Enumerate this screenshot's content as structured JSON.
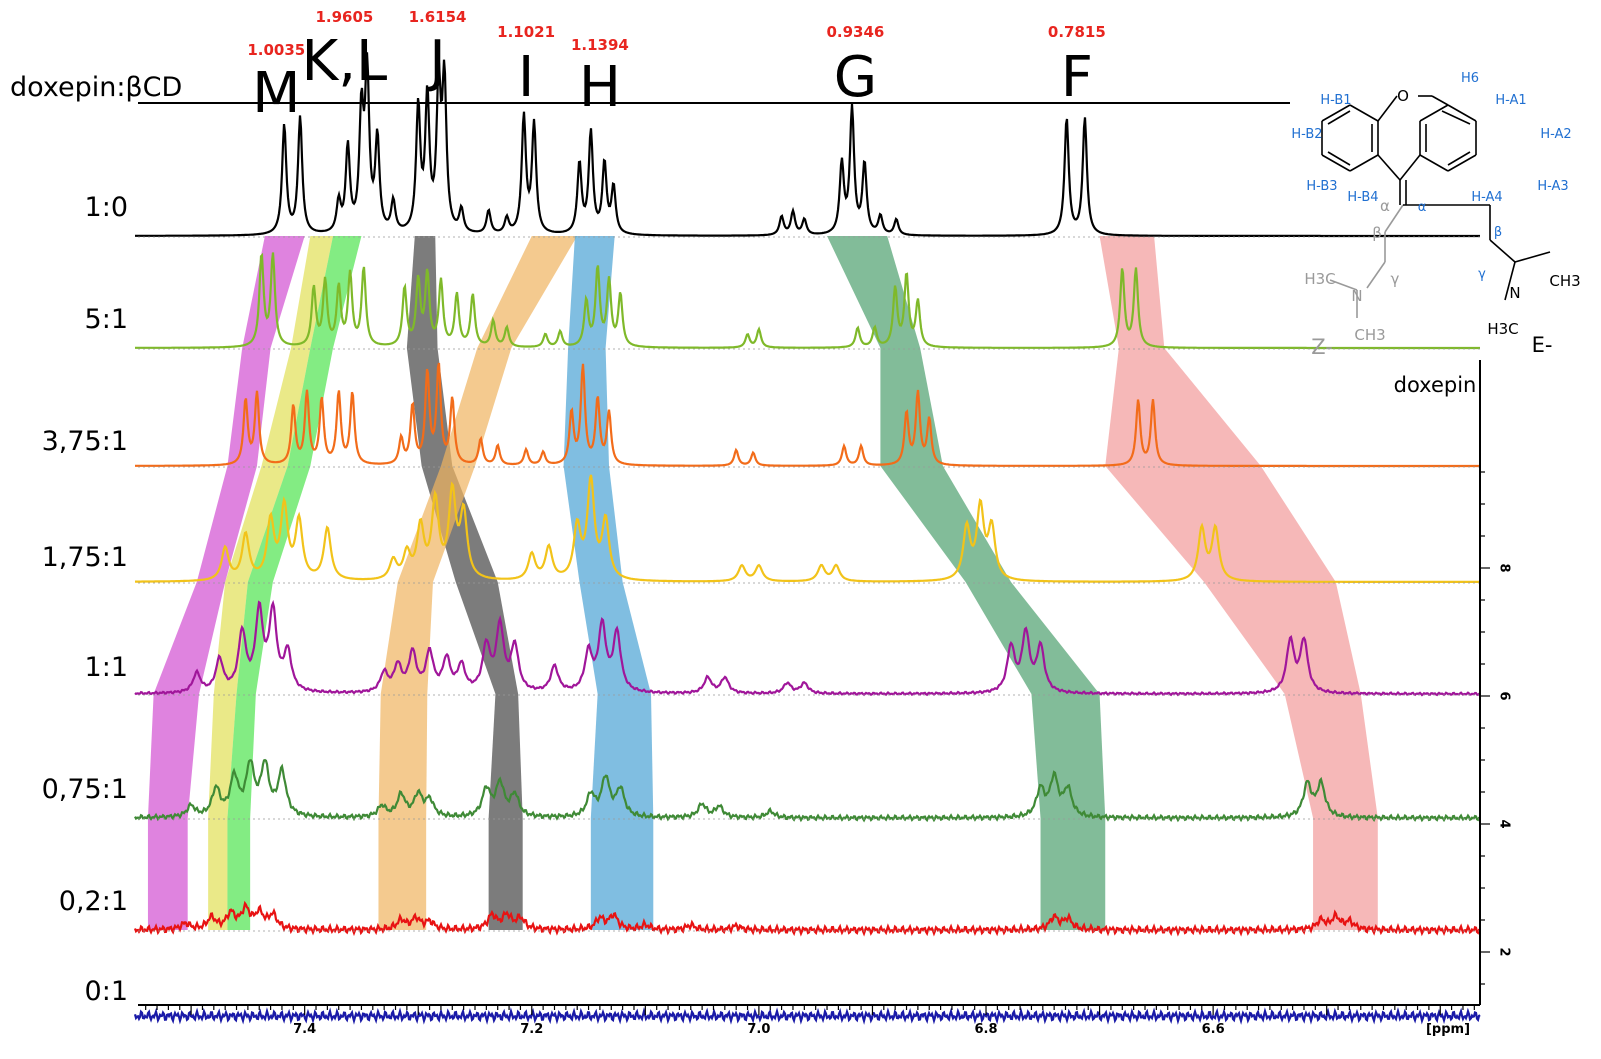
{
  "chart_data": {
    "type": "line",
    "title": "",
    "header_label": "doxepin:βCD",
    "xlabel": "[ppm]",
    "xlim": [
      7.545,
      6.365
    ],
    "x_ticks": [
      "7.4",
      "7.2",
      "7.0",
      "6.8",
      "6.6"
    ],
    "y_ticks": [
      "2",
      "4",
      "6",
      "8"
    ],
    "series": [
      {
        "name": "1:0",
        "color": "#000000",
        "baseline": 0.3,
        "shift": 0.0,
        "peaks": [
          [
            7.418,
            70
          ],
          [
            7.404,
            75
          ],
          [
            7.37,
            20
          ],
          [
            7.362,
            55
          ],
          [
            7.35,
            75
          ],
          [
            7.345,
            100
          ],
          [
            7.336,
            60
          ],
          [
            7.322,
            20
          ],
          [
            7.3,
            80
          ],
          [
            7.292,
            85
          ],
          [
            7.282,
            90
          ],
          [
            7.277,
            95
          ],
          [
            7.262,
            15
          ],
          [
            7.238,
            15
          ],
          [
            7.222,
            10
          ],
          [
            7.207,
            75
          ],
          [
            7.198,
            70
          ],
          [
            7.158,
            45
          ],
          [
            7.148,
            65
          ],
          [
            7.136,
            45
          ],
          [
            7.128,
            30
          ],
          [
            6.98,
            12
          ],
          [
            6.97,
            15
          ],
          [
            6.96,
            10
          ],
          [
            6.927,
            45
          ],
          [
            6.918,
            80
          ],
          [
            6.907,
            45
          ],
          [
            6.893,
            12
          ],
          [
            6.879,
            10
          ],
          [
            6.729,
            75
          ],
          [
            6.713,
            75
          ]
        ]
      },
      {
        "name": "5:1",
        "color": "#7fb92a",
        "baseline": 2.1,
        "shift": 0.0,
        "peaks": [
          [
            7.438,
            70
          ],
          [
            7.428,
            70
          ],
          [
            7.392,
            45
          ],
          [
            7.382,
            50
          ],
          [
            7.37,
            45
          ],
          [
            7.36,
            55
          ],
          [
            7.348,
            60
          ],
          [
            7.312,
            45
          ],
          [
            7.3,
            50
          ],
          [
            7.292,
            55
          ],
          [
            7.28,
            50
          ],
          [
            7.266,
            40
          ],
          [
            7.252,
            40
          ],
          [
            7.234,
            20
          ],
          [
            7.222,
            15
          ],
          [
            7.188,
            10
          ],
          [
            7.175,
            12
          ],
          [
            7.152,
            35
          ],
          [
            7.142,
            60
          ],
          [
            7.132,
            50
          ],
          [
            7.122,
            40
          ],
          [
            7.01,
            10
          ],
          [
            7.0,
            14
          ],
          [
            6.913,
            15
          ],
          [
            6.898,
            15
          ],
          [
            6.88,
            45
          ],
          [
            6.87,
            55
          ],
          [
            6.86,
            35
          ],
          [
            6.68,
            60
          ],
          [
            6.668,
            60
          ]
        ]
      },
      {
        "name": "3,75:1",
        "color": "#f26c1a",
        "baseline": 4.0,
        "shift": 0.0,
        "peaks": [
          [
            7.452,
            50
          ],
          [
            7.442,
            55
          ],
          [
            7.41,
            45
          ],
          [
            7.398,
            55
          ],
          [
            7.385,
            50
          ],
          [
            7.37,
            55
          ],
          [
            7.358,
            55
          ],
          [
            7.315,
            20
          ],
          [
            7.305,
            45
          ],
          [
            7.292,
            70
          ],
          [
            7.282,
            75
          ],
          [
            7.27,
            50
          ],
          [
            7.245,
            20
          ],
          [
            7.23,
            15
          ],
          [
            7.205,
            12
          ],
          [
            7.19,
            10
          ],
          [
            7.165,
            40
          ],
          [
            7.155,
            75
          ],
          [
            7.142,
            50
          ],
          [
            7.132,
            40
          ],
          [
            7.02,
            12
          ],
          [
            7.005,
            10
          ],
          [
            6.925,
            15
          ],
          [
            6.91,
            15
          ],
          [
            6.87,
            40
          ],
          [
            6.86,
            55
          ],
          [
            6.85,
            35
          ],
          [
            6.666,
            50
          ],
          [
            6.653,
            50
          ]
        ]
      },
      {
        "name": "1,75:1",
        "color": "#f2c31a",
        "baseline": 5.8,
        "shift": 0.0,
        "peaks": [
          [
            7.47,
            25
          ],
          [
            7.452,
            35
          ],
          [
            7.43,
            45
          ],
          [
            7.418,
            55
          ],
          [
            7.405,
            45
          ],
          [
            7.38,
            40
          ],
          [
            7.322,
            15
          ],
          [
            7.31,
            20
          ],
          [
            7.298,
            40
          ],
          [
            7.285,
            60
          ],
          [
            7.27,
            65
          ],
          [
            7.26,
            50
          ],
          [
            7.2,
            20
          ],
          [
            7.185,
            25
          ],
          [
            7.16,
            40
          ],
          [
            7.148,
            75
          ],
          [
            7.135,
            45
          ],
          [
            7.015,
            12
          ],
          [
            7.0,
            12
          ],
          [
            6.945,
            12
          ],
          [
            6.932,
            12
          ],
          [
            6.817,
            40
          ],
          [
            6.805,
            55
          ],
          [
            6.795,
            40
          ],
          [
            6.61,
            40
          ],
          [
            6.598,
            40
          ]
        ]
      },
      {
        "name": "1:1",
        "color": "#a0169a",
        "baseline": 7.7,
        "shift": 0.0,
        "peaks": [
          [
            7.495,
            15
          ],
          [
            7.475,
            25
          ],
          [
            7.455,
            45
          ],
          [
            7.44,
            60
          ],
          [
            7.428,
            60
          ],
          [
            7.415,
            30
          ],
          [
            7.33,
            15
          ],
          [
            7.318,
            20
          ],
          [
            7.305,
            30
          ],
          [
            7.29,
            30
          ],
          [
            7.275,
            25
          ],
          [
            7.262,
            20
          ],
          [
            7.24,
            35
          ],
          [
            7.228,
            50
          ],
          [
            7.215,
            35
          ],
          [
            7.18,
            20
          ],
          [
            7.15,
            30
          ],
          [
            7.138,
            50
          ],
          [
            7.125,
            45
          ],
          [
            7.045,
            12
          ],
          [
            7.03,
            12
          ],
          [
            6.975,
            8
          ],
          [
            6.96,
            8
          ],
          [
            6.778,
            35
          ],
          [
            6.765,
            45
          ],
          [
            6.752,
            35
          ],
          [
            6.532,
            40
          ],
          [
            6.52,
            40
          ]
        ]
      },
      {
        "name": "0,75:1",
        "color": "#3f8a36",
        "baseline": 9.5,
        "shift": 0.0,
        "peaks": [
          [
            7.5,
            10
          ],
          [
            7.478,
            25
          ],
          [
            7.462,
            35
          ],
          [
            7.448,
            45
          ],
          [
            7.435,
            45
          ],
          [
            7.42,
            40
          ],
          [
            7.332,
            10
          ],
          [
            7.315,
            20
          ],
          [
            7.3,
            20
          ],
          [
            7.29,
            15
          ],
          [
            7.24,
            25
          ],
          [
            7.228,
            30
          ],
          [
            7.215,
            20
          ],
          [
            7.148,
            20
          ],
          [
            7.135,
            35
          ],
          [
            7.122,
            25
          ],
          [
            7.05,
            12
          ],
          [
            7.035,
            10
          ],
          [
            6.99,
            6
          ],
          [
            6.752,
            25
          ],
          [
            6.74,
            35
          ],
          [
            6.728,
            25
          ],
          [
            6.517,
            30
          ],
          [
            6.505,
            30
          ]
        ]
      },
      {
        "name": "0,2:1",
        "color": "#e81313",
        "baseline": 11.35,
        "shift": 0.0,
        "peaks": [
          [
            7.505,
            8
          ],
          [
            7.482,
            15
          ],
          [
            7.465,
            20
          ],
          [
            7.452,
            25
          ],
          [
            7.44,
            20
          ],
          [
            7.428,
            18
          ],
          [
            7.315,
            12
          ],
          [
            7.302,
            14
          ],
          [
            7.29,
            10
          ],
          [
            7.235,
            18
          ],
          [
            7.222,
            18
          ],
          [
            7.21,
            14
          ],
          [
            7.14,
            14
          ],
          [
            7.128,
            18
          ],
          [
            7.1,
            6
          ],
          [
            7.06,
            6
          ],
          [
            7.02,
            5
          ],
          [
            6.74,
            16
          ],
          [
            6.728,
            14
          ],
          [
            6.505,
            12
          ],
          [
            6.492,
            16
          ],
          [
            6.48,
            10
          ]
        ]
      },
      {
        "name": "0:1",
        "color": "#1a1aa8",
        "baseline": 12.9,
        "shift": 0.0,
        "peaks": []
      }
    ],
    "peak_labels": [
      {
        "letter": "M",
        "integral": "1.0035",
        "ppm": 7.425
      },
      {
        "letter": "K,L",
        "integral": "1.9605",
        "ppm": 7.365
      },
      {
        "letter": "J",
        "integral": "1.6154",
        "ppm": 7.283
      },
      {
        "letter": "I",
        "integral": "1.1021",
        "ppm": 7.205
      },
      {
        "letter": "H",
        "integral": "1.1394",
        "ppm": 7.14
      },
      {
        "letter": "G",
        "integral": "0.9346",
        "ppm": 6.915
      },
      {
        "letter": "F",
        "integral": "0.7815",
        "ppm": 6.72
      }
    ],
    "bands": [
      {
        "peak": "M",
        "color": "#d14fd1",
        "opacity": 0.7,
        "ranges": [
          [
            7.435,
            7.4
          ],
          [
            7.455,
            7.43
          ],
          [
            7.468,
            7.442
          ],
          [
            7.495,
            7.47
          ],
          [
            7.533,
            7.493
          ],
          [
            7.538,
            7.503
          ]
        ]
      },
      {
        "peak": "L",
        "color": "#e1e056",
        "opacity": 0.7,
        "ranges": [
          [
            7.395,
            7.375
          ],
          [
            7.412,
            7.395
          ],
          [
            7.438,
            7.415
          ],
          [
            7.47,
            7.45
          ],
          [
            7.48,
            7.46
          ],
          [
            7.485,
            7.468
          ]
        ]
      },
      {
        "peak": "K",
        "color": "#4ee44e",
        "opacity": 0.7,
        "ranges": [
          [
            7.375,
            7.35
          ],
          [
            7.395,
            7.375
          ],
          [
            7.415,
            7.395
          ],
          [
            7.45,
            7.428
          ],
          [
            7.46,
            7.443
          ],
          [
            7.468,
            7.448
          ]
        ]
      },
      {
        "peak": "J",
        "color": "#444444",
        "opacity": 0.7,
        "ranges": [
          [
            7.303,
            7.285
          ],
          [
            7.31,
            7.283
          ],
          [
            7.297,
            7.27
          ],
          [
            7.267,
            7.23
          ],
          [
            7.232,
            7.212
          ],
          [
            7.238,
            7.208
          ]
        ]
      },
      {
        "peak": "I",
        "color": "#efb35f",
        "opacity": 0.7,
        "ranges": [
          [
            7.2,
            7.16
          ],
          [
            7.248,
            7.218
          ],
          [
            7.28,
            7.25
          ],
          [
            7.318,
            7.287
          ],
          [
            7.333,
            7.292
          ],
          [
            7.335,
            7.293
          ]
        ]
      },
      {
        "peak": "H",
        "color": "#4aa2d4",
        "opacity": 0.7,
        "ranges": [
          [
            7.162,
            7.127
          ],
          [
            7.168,
            7.135
          ],
          [
            7.172,
            7.132
          ],
          [
            7.158,
            7.12
          ],
          [
            7.142,
            7.095
          ],
          [
            7.148,
            7.093
          ]
        ]
      },
      {
        "peak": "G",
        "color": "#4d9f6e",
        "opacity": 0.7,
        "ranges": [
          [
            6.94,
            6.887
          ],
          [
            6.893,
            6.858
          ],
          [
            6.893,
            6.838
          ],
          [
            6.818,
            6.778
          ],
          [
            6.76,
            6.7
          ],
          [
            6.752,
            6.695
          ]
        ]
      },
      {
        "peak": "F",
        "color": "#f08d8d",
        "opacity": 0.62,
        "ranges": [
          [
            6.7,
            6.652
          ],
          [
            6.683,
            6.643
          ],
          [
            6.695,
            6.558
          ],
          [
            6.608,
            6.492
          ],
          [
            6.537,
            6.47
          ],
          [
            6.512,
            6.455
          ]
        ]
      }
    ],
    "molecule": {
      "H-B1": "H-B1",
      "H-B2": "H-B2",
      "H-B3": "H-B3",
      "H-B4": "H-B4",
      "H-A1": "H-A1",
      "H-A2": "H-A2",
      "H-A3": "H-A3",
      "H-A4": "H-A4",
      "H6": "H6",
      "O": "O",
      "alpha": "α",
      "beta": "β",
      "gamma": "γ",
      "N": "N",
      "CH3": "CH3",
      "H3C": "H3C",
      "Z": "Z-",
      "E": "E-",
      "name": "doxepin"
    }
  }
}
